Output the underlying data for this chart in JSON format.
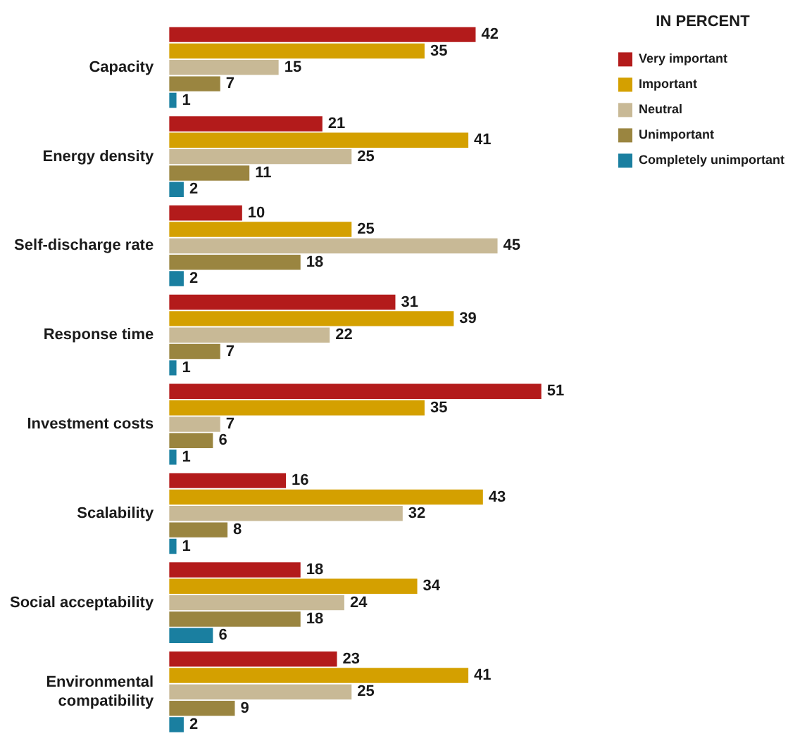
{
  "chart_data": {
    "type": "bar",
    "orientation": "horizontal",
    "legend_title": "IN PERCENT",
    "legend": "top right",
    "data_labels": true,
    "categories": [
      "Capacity",
      "Energy density",
      "Self-discharge rate",
      "Response time",
      "Investment costs",
      "Scalability",
      "Social acceptability",
      "Environmental compatibility"
    ],
    "series": [
      {
        "name": "Very important",
        "color": "#b31b1b",
        "values": [
          42,
          21,
          10,
          31,
          51,
          16,
          18,
          23
        ]
      },
      {
        "name": "Important",
        "color": "#d4a000",
        "values": [
          35,
          41,
          25,
          39,
          35,
          43,
          34,
          41
        ]
      },
      {
        "name": "Neutral",
        "color": "#c8b996",
        "values": [
          15,
          25,
          45,
          22,
          7,
          32,
          24,
          25
        ]
      },
      {
        "name": "Unimportant",
        "color": "#9a8540",
        "values": [
          7,
          11,
          18,
          7,
          6,
          8,
          18,
          9
        ]
      },
      {
        "name": "Completely unimportant",
        "color": "#1a7fa0",
        "values": [
          1,
          2,
          2,
          1,
          1,
          1,
          6,
          2
        ]
      }
    ]
  }
}
